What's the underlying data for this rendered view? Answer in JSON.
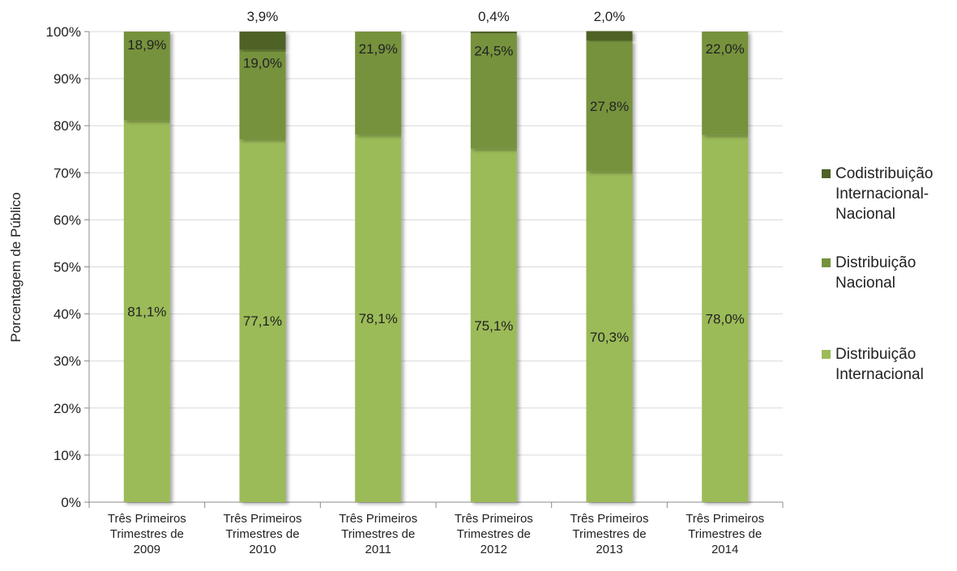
{
  "chart_data": {
    "type": "bar",
    "stacked": true,
    "categories": [
      [
        "Três Primeiros",
        "Trimestres de",
        "2009"
      ],
      [
        "Três Primeiros",
        "Trimestres de",
        "2010"
      ],
      [
        "Três Primeiros",
        "Trimestres de",
        "2011"
      ],
      [
        "Três Primeiros",
        "Trimestres de",
        "2012"
      ],
      [
        "Três Primeiros",
        "Trimestres de",
        "2013"
      ],
      [
        "Três Primeiros",
        "Trimestres de",
        "2014"
      ]
    ],
    "series": [
      {
        "name": "Distribuição Internacional",
        "legend_lines": [
          "Distribuição",
          "Internacional"
        ],
        "color": "#9bbb59",
        "values": [
          81.1,
          77.1,
          78.1,
          75.1,
          70.3,
          78.0
        ],
        "labels": [
          "81,1%",
          "77,1%",
          "78,1%",
          "75,1%",
          "70,3%",
          "78,0%"
        ]
      },
      {
        "name": "Distribuição Nacional",
        "legend_lines": [
          "Distribuição",
          "Nacional"
        ],
        "color": "#76923c",
        "values": [
          18.9,
          19.0,
          21.9,
          24.5,
          27.8,
          22.0
        ],
        "labels": [
          "18,9%",
          "19,0%",
          "21,9%",
          "24,5%",
          "27,8%",
          "22,0%"
        ]
      },
      {
        "name": "Codistribuição Internacional-Nacional",
        "legend_lines": [
          "Codistribuição",
          "Internacional-",
          "Nacional"
        ],
        "color": "#4f6228",
        "values": [
          0,
          3.9,
          0,
          0.4,
          2.0,
          0
        ],
        "labels": [
          "",
          "3,9%",
          "",
          "0,4%",
          "2,0%",
          ""
        ]
      }
    ],
    "ylabel": "Porcentagem de Público",
    "ylim": [
      0,
      100
    ],
    "yticks": [
      0,
      10,
      20,
      30,
      40,
      50,
      60,
      70,
      80,
      90,
      100
    ],
    "ytick_labels": [
      "0%",
      "10%",
      "20%",
      "30%",
      "40%",
      "50%",
      "60%",
      "70%",
      "80%",
      "90%",
      "100%"
    ],
    "grid": true,
    "legend_position": "right"
  }
}
